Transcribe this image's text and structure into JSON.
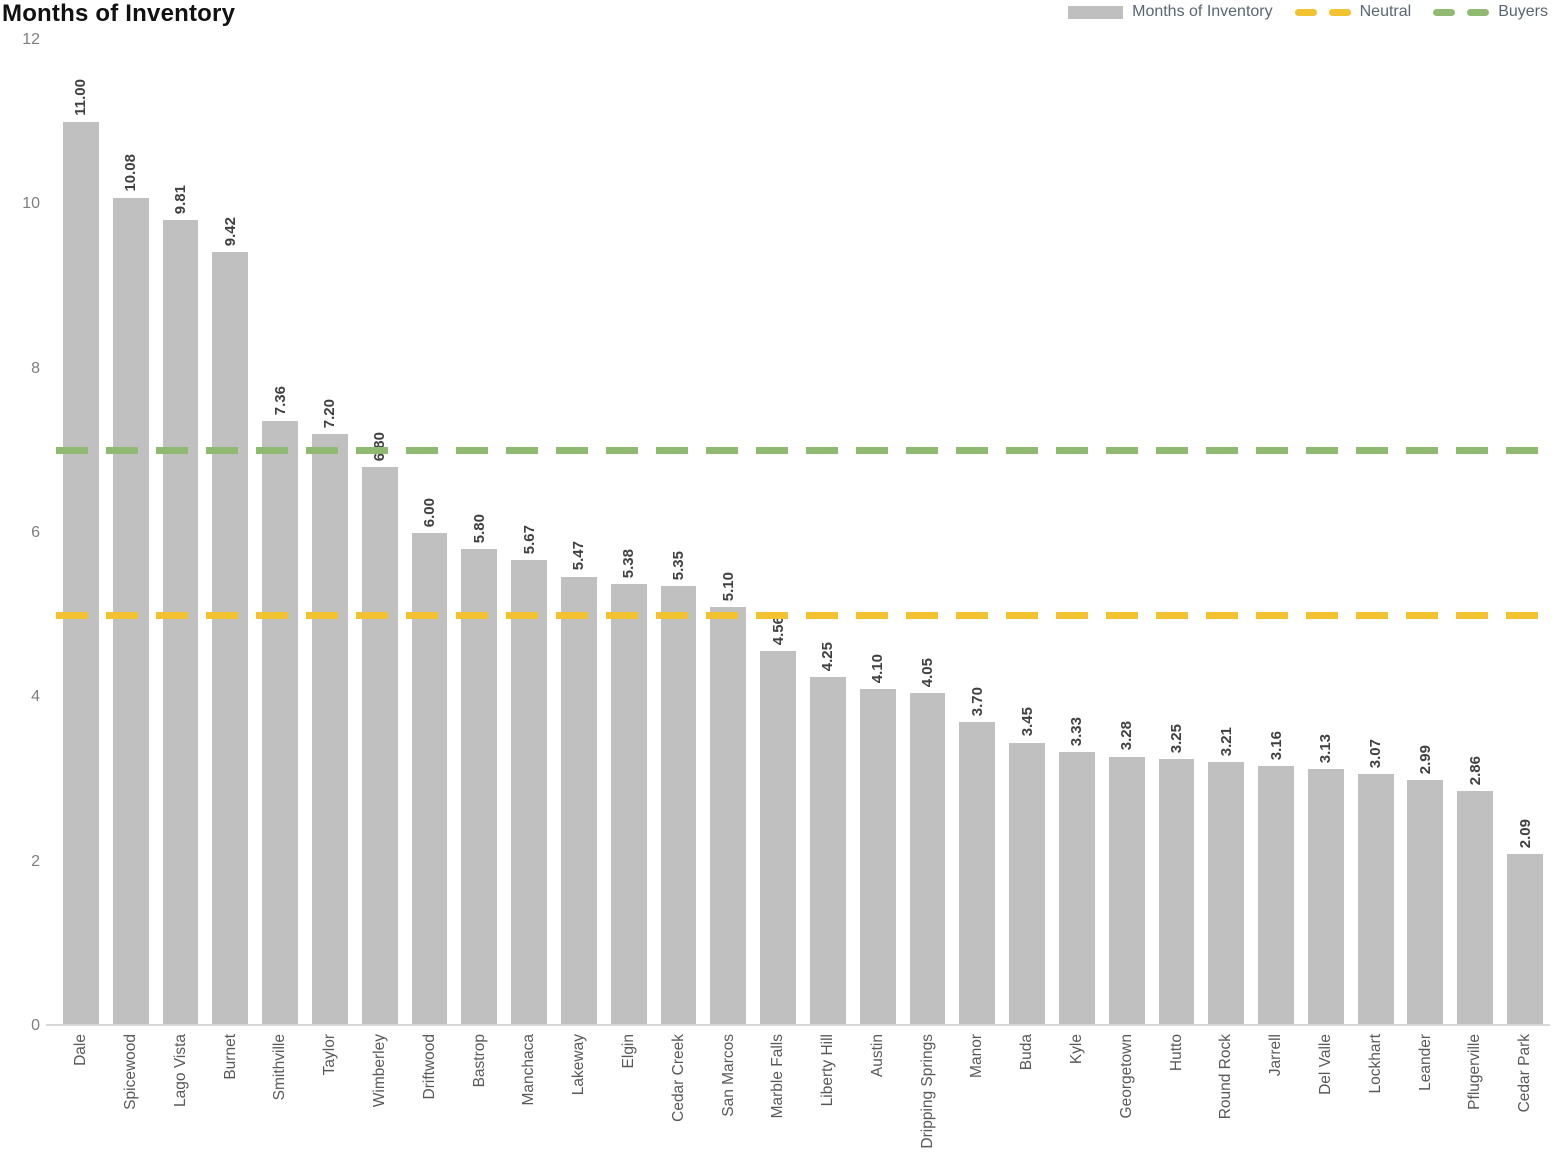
{
  "title": "Months of Inventory",
  "legend": {
    "series_label": "Months of Inventory",
    "neutral_label": "Neutral",
    "buyers_label": "Buyers"
  },
  "colors": {
    "bar": "#c0c0c0",
    "neutral_line": "#f2c230",
    "buyers_line": "#90ba72",
    "value_label": "#404040",
    "axis_label": "#7f7f7f",
    "category_label": "#595959",
    "baseline": "#d9d9d9"
  },
  "chart_data": {
    "type": "bar",
    "title": "Months of Inventory",
    "categories": [
      "Dale",
      "Spicewood",
      "Lago Vista",
      "Burnet",
      "Smithville",
      "Taylor",
      "Wimberley",
      "Driftwood",
      "Bastrop",
      "Manchaca",
      "Lakeway",
      "Elgin",
      "Cedar Creek",
      "San Marcos",
      "Marble Falls",
      "Liberty Hill",
      "Austin",
      "Dripping Springs",
      "Manor",
      "Buda",
      "Kyle",
      "Georgetown",
      "Hutto",
      "Round Rock",
      "Jarrell",
      "Del Valle",
      "Lockhart",
      "Leander",
      "Pflugerville",
      "Cedar Park"
    ],
    "values": [
      11.0,
      10.08,
      9.81,
      9.42,
      7.36,
      7.2,
      6.8,
      6.0,
      5.8,
      5.67,
      5.47,
      5.38,
      5.35,
      5.1,
      4.56,
      4.25,
      4.1,
      4.05,
      3.7,
      3.45,
      3.33,
      3.28,
      3.25,
      3.21,
      3.16,
      3.13,
      3.07,
      2.99,
      2.86,
      2.09
    ],
    "value_labels": [
      "11.00",
      "10.08",
      "9.81",
      "9.42",
      "7.36",
      "7.20",
      "6.80",
      "6.00",
      "5.80",
      "5.67",
      "5.47",
      "5.38",
      "5.35",
      "5.10",
      "4.56",
      "4.25",
      "4.10",
      "4.05",
      "3.70",
      "3.45",
      "3.33",
      "3.28",
      "3.25",
      "3.21",
      "3.16",
      "3.13",
      "3.07",
      "2.99",
      "2.86",
      "2.09"
    ],
    "xlabel": "",
    "ylabel": "",
    "ylim": [
      0,
      12
    ],
    "yticks": [
      0,
      2,
      4,
      6,
      8,
      10,
      12
    ],
    "grid": false,
    "legend_position": "top-right",
    "reference_lines": [
      {
        "name": "Neutral",
        "value": 5,
        "color": "#f2c230",
        "style": "dashed"
      },
      {
        "name": "Buyers",
        "value": 7,
        "color": "#90ba72",
        "style": "dashed"
      }
    ]
  }
}
